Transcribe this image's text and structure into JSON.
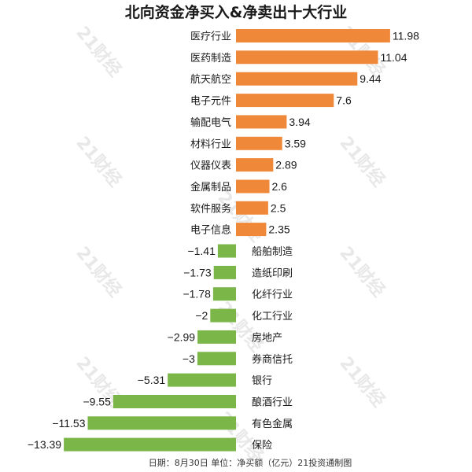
{
  "watermark": "21财经",
  "chart_data": {
    "type": "bar",
    "orientation": "horizontal",
    "title": "北向资金净买入&净卖出十大行业",
    "footer": "日期：8月30日 单位：净买额（亿元）21投资通制图",
    "categories": [
      "医疗行业",
      "医药制造",
      "航天航空",
      "电子元件",
      "输配电气",
      "材料行业",
      "仪器仪表",
      "金属制品",
      "软件服务",
      "电子信息",
      "船舶制造",
      "造纸印刷",
      "化纤行业",
      "化工行业",
      "房地产",
      "券商信托",
      "银行",
      "酿酒行业",
      "有色金属",
      "保险"
    ],
    "values": [
      11.98,
      11.04,
      9.44,
      7.6,
      3.94,
      3.59,
      2.89,
      2.6,
      2.5,
      2.35,
      -1.41,
      -1.73,
      -1.78,
      -2,
      -2.99,
      -3,
      -5.31,
      -9.55,
      -11.53,
      -13.39
    ],
    "value_labels": [
      "11.98",
      "11.04",
      "9.44",
      "7.6",
      "3.94",
      "3.59",
      "2.89",
      "2.6",
      "2.5",
      "2.35",
      "−1.41",
      "−1.73",
      "−1.78",
      "−2",
      "−2.99",
      "−3",
      "−5.31",
      "−9.55",
      "−11.53",
      "−13.39"
    ],
    "colors": {
      "positive": "#f0883a",
      "negative": "#7ab648"
    }
  }
}
